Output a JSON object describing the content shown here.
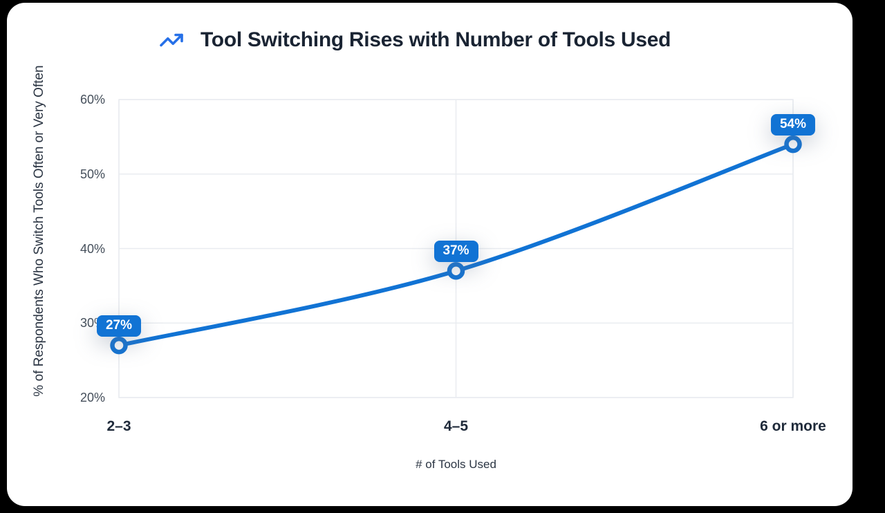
{
  "page": {
    "background": "#000000",
    "card_background": "#ffffff"
  },
  "header": {
    "title": "Tool Switching Rises with Number of Tools Used",
    "icon": "trending-up-icon",
    "icon_color": "#2670e8",
    "title_color": "#1a2433"
  },
  "chart_data": {
    "type": "line",
    "title": "Tool Switching Rises with Number of Tools Used",
    "categories": [
      "2–3",
      "4–5",
      "6 or more"
    ],
    "values": [
      27,
      37,
      54
    ],
    "point_labels": [
      "27%",
      "37%",
      "54%"
    ],
    "xlabel": "# of Tools Used",
    "ylabel": "% of Respondents Who Switch Tools Often or Very Often",
    "ylim": [
      20,
      60
    ],
    "yticks": [
      20,
      30,
      40,
      50,
      60
    ],
    "ytick_labels": [
      "20%",
      "30%",
      "40%",
      "50%",
      "60%"
    ],
    "grid": true,
    "legend": false,
    "smooth_line": true,
    "colors": {
      "line": "#1173d4",
      "point_fill": "#ffffff",
      "point_stroke": "#1173d4",
      "badge_background": "#1173d4",
      "badge_text": "#ffffff",
      "grid": "#e9ecf0",
      "ytick_text": "#454f5b",
      "xtick_text": "#1f2a3a",
      "axis_title_text": "#2b3543"
    }
  }
}
